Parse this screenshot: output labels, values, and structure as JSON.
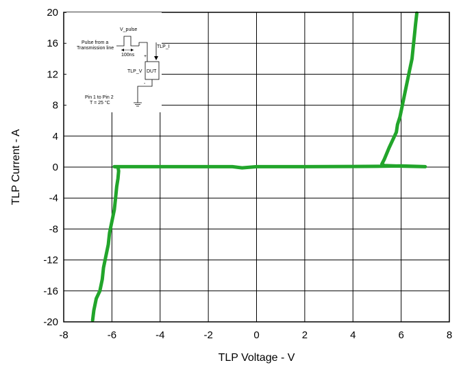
{
  "chart_data": {
    "type": "line",
    "xlabel": "TLP Voltage - V",
    "ylabel": "TLP Current - A",
    "xlim": [
      -8,
      8
    ],
    "ylim": [
      -20,
      20
    ],
    "xticks": [
      -8,
      -6,
      -4,
      -2,
      0,
      2,
      4,
      6,
      8
    ],
    "yticks": [
      -20,
      -16,
      -12,
      -8,
      -4,
      0,
      4,
      8,
      12,
      16,
      20
    ],
    "grid": true,
    "line_color": "#22a52b",
    "series": [
      {
        "name": "",
        "points": [
          [
            -6.8,
            -19.8
          ],
          [
            -6.75,
            -18.5
          ],
          [
            -6.65,
            -17
          ],
          [
            -6.5,
            -16
          ],
          [
            -6.4,
            -14.5
          ],
          [
            -6.35,
            -13
          ],
          [
            -6.25,
            -11.5
          ],
          [
            -6.15,
            -10
          ],
          [
            -6.1,
            -8.5
          ],
          [
            -6.0,
            -7
          ],
          [
            -5.9,
            -5.5
          ],
          [
            -5.85,
            -4
          ],
          [
            -5.8,
            -2.5
          ],
          [
            -5.75,
            -1.5
          ],
          [
            -5.72,
            -0.5
          ],
          [
            -5.75,
            0.0
          ],
          [
            -5.9,
            0.05
          ],
          [
            -5.0,
            0.05
          ],
          [
            -3.0,
            0.05
          ],
          [
            -1.0,
            0.05
          ],
          [
            -0.6,
            -0.1
          ],
          [
            0.0,
            0.05
          ],
          [
            2.0,
            0.05
          ],
          [
            4.0,
            0.08
          ],
          [
            5.0,
            0.1
          ],
          [
            6.0,
            0.15
          ],
          [
            7.0,
            0.05
          ],
          [
            6.0,
            0.12
          ],
          [
            5.3,
            0.2
          ],
          [
            5.2,
            0.4
          ],
          [
            5.3,
            1.0
          ],
          [
            5.5,
            2.5
          ],
          [
            5.65,
            3.5
          ],
          [
            5.8,
            4.5
          ],
          [
            5.85,
            5.5
          ],
          [
            5.95,
            6.5
          ],
          [
            6.05,
            8
          ],
          [
            6.15,
            9.5
          ],
          [
            6.25,
            11
          ],
          [
            6.35,
            12.5
          ],
          [
            6.45,
            14
          ],
          [
            6.5,
            15.5
          ],
          [
            6.55,
            17
          ],
          [
            6.6,
            18.5
          ],
          [
            6.65,
            19.9
          ]
        ]
      }
    ]
  },
  "inset": {
    "v_pulse": "V_pulse",
    "pulse_line1": "Pulse from a",
    "pulse_line2": "Transmission line",
    "width": "100ns",
    "tlp_i": "TLP_I",
    "tlp_v": "TLP_V",
    "plus": "+",
    "minus": "-",
    "dut": "DUT",
    "pin": "Pin 1 to Pin 2",
    "temp": "T = 25 °C"
  }
}
